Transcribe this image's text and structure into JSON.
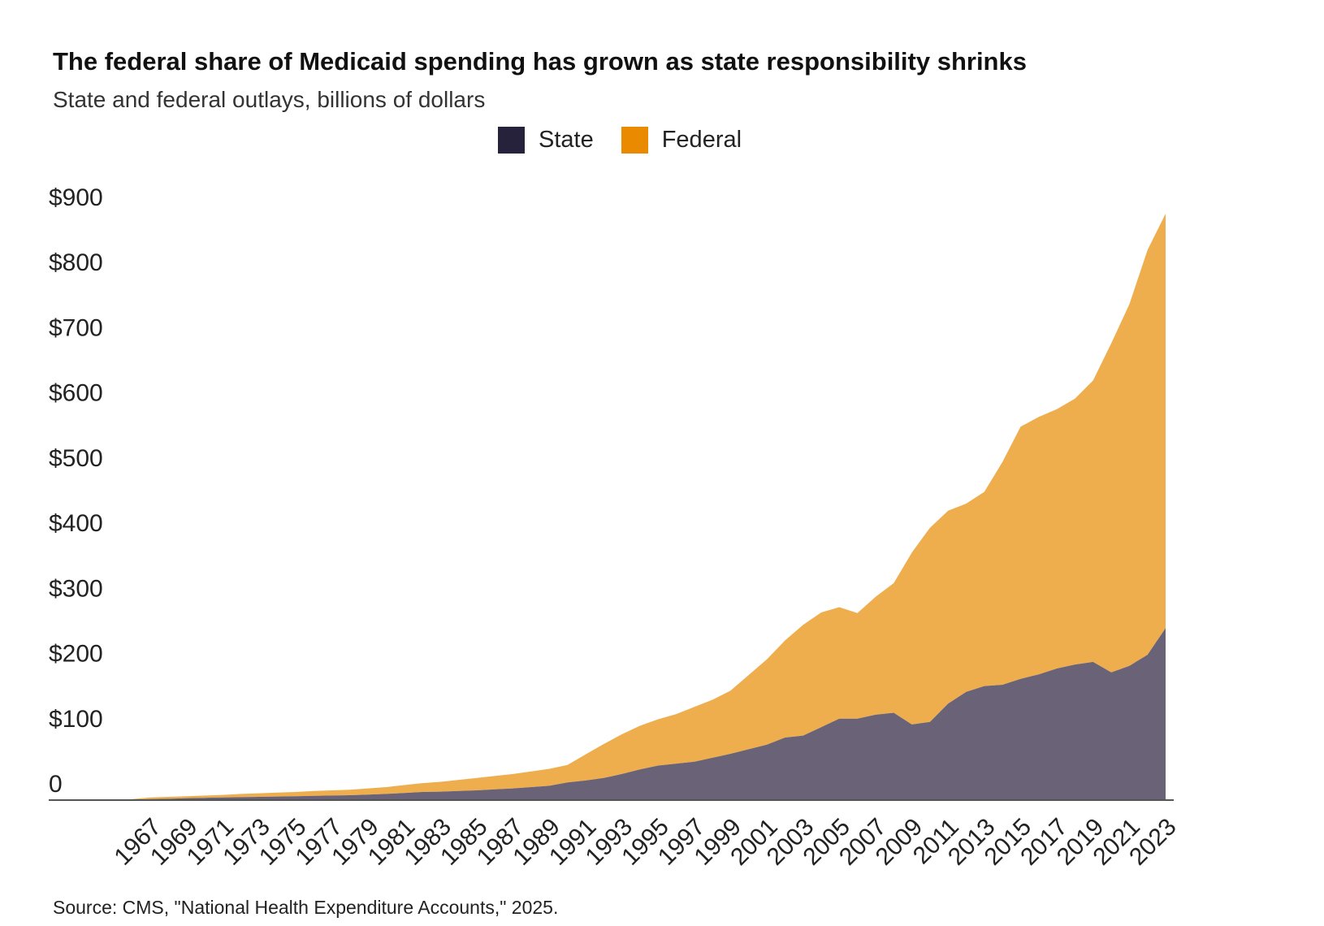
{
  "chart_data": {
    "type": "area",
    "stacked": true,
    "title": "The federal share of Medicaid spending has grown as state responsibility shrinks",
    "subtitle": "State and federal outlays, billions of dollars",
    "source": "Source: CMS, \"National Health Expenditure Accounts,\" 2025.",
    "y_tick_labels": [
      "0",
      "$100",
      "$200",
      "$300",
      "$400",
      "$500",
      "$600",
      "$700",
      "$800",
      "$900"
    ],
    "ylim": [
      0,
      900
    ],
    "x_tick_labels": [
      "1967",
      "1969",
      "1971",
      "1973",
      "1975",
      "1977",
      "1979",
      "1981",
      "1983",
      "1985",
      "1987",
      "1989",
      "1991",
      "1993",
      "1995",
      "1997",
      "1999",
      "2001",
      "2003",
      "2005",
      "2007",
      "2009",
      "2011",
      "2013",
      "2015",
      "2017",
      "2019",
      "2021",
      "2023"
    ],
    "grid": false,
    "legend_position": "top-center",
    "x": [
      1966,
      1967,
      1968,
      1969,
      1970,
      1971,
      1972,
      1973,
      1974,
      1975,
      1976,
      1977,
      1978,
      1979,
      1980,
      1981,
      1982,
      1983,
      1984,
      1985,
      1986,
      1987,
      1988,
      1989,
      1990,
      1991,
      1992,
      1993,
      1994,
      1995,
      1996,
      1997,
      1998,
      1999,
      2000,
      2001,
      2002,
      2003,
      2004,
      2005,
      2006,
      2007,
      2008,
      2009,
      2010,
      2011,
      2012,
      2013,
      2014,
      2015,
      2016,
      2017,
      2018,
      2019,
      2020,
      2021,
      2022,
      2023
    ],
    "series": [
      {
        "name": "State",
        "color": "#6a6378",
        "values": [
          0.5,
          1.5,
          2,
          3,
          3.5,
          4,
          4.5,
          5,
          5.5,
          6,
          6.5,
          7,
          7.5,
          8.5,
          9.5,
          11,
          12.5,
          13,
          14,
          15,
          16.5,
          18,
          20,
          22,
          27,
          30,
          34,
          40,
          47,
          53,
          56,
          59,
          65,
          71,
          78,
          85,
          96,
          99,
          112,
          125,
          125,
          131,
          134,
          116,
          120,
          148,
          166,
          175,
          177,
          186,
          193,
          202,
          208,
          212,
          196,
          206,
          223,
          264
        ]
      },
      {
        "name": "Federal",
        "color": "#efae4e",
        "values": [
          1,
          2.5,
          3,
          3,
          3.5,
          4,
          5,
          5.5,
          6,
          6.5,
          7.5,
          8,
          8.5,
          9.5,
          10.5,
          12,
          13.5,
          15,
          17,
          19,
          20.5,
          22,
          24,
          26,
          27,
          40,
          52,
          61,
          67,
          71,
          76,
          84,
          89,
          97,
          114,
          131,
          149,
          170,
          176,
          171,
          162,
          181,
          199,
          264,
          298,
          296,
          289,
          298,
          342,
          387,
          395,
          398,
          408,
          432,
          505,
          555,
          621,
          636
        ]
      }
    ]
  },
  "legend": {
    "state_label": "State",
    "state_color": "#26223b",
    "federal_label": "Federal",
    "federal_color": "#e98a00"
  },
  "axis_color": "#555555"
}
